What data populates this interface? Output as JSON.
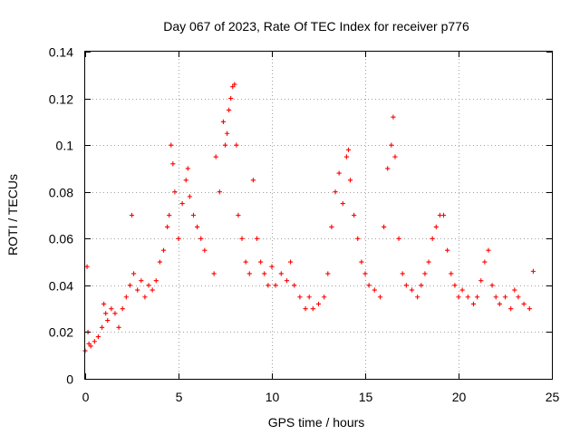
{
  "chart_data": {
    "type": "scatter",
    "title": "Day 067 of 2023, Rate Of TEC Index for receiver p776",
    "xlabel": "GPS time / hours",
    "ylabel": "ROTI / TECUs",
    "xlim": [
      0,
      25
    ],
    "ylim": [
      0,
      0.14
    ],
    "xticks": [
      0,
      5,
      10,
      15,
      20,
      25
    ],
    "xtick_labels": [
      "0",
      "5",
      "10",
      "15",
      "20",
      "25"
    ],
    "yticks": [
      0,
      0.02,
      0.04,
      0.06,
      0.08,
      0.1,
      0.12,
      0.14
    ],
    "ytick_labels": [
      "0",
      "0.02",
      "0.04",
      "0.06",
      "0.08",
      "0.1",
      "0.12",
      "0.14"
    ],
    "grid": true,
    "marker": "plus",
    "color": "#ff0000",
    "data_gaps_hours": [
      [
        6.5,
        6.9
      ]
    ],
    "series": [
      {
        "x": [
          0.0,
          0.1,
          0.15,
          0.2,
          0.3,
          0.5,
          0.7,
          0.9,
          1.0,
          1.1,
          1.2,
          1.4,
          1.6,
          1.8,
          2.0,
          2.2,
          2.4,
          2.5,
          2.6,
          2.8,
          3.0,
          3.2,
          3.4,
          3.6,
          3.8,
          4.0,
          4.2,
          4.4,
          4.5,
          4.6,
          4.7,
          4.8,
          5.0,
          5.2,
          5.4,
          5.5,
          5.6,
          5.8,
          6.0,
          6.2,
          6.4,
          6.9,
          7.0,
          7.2,
          7.4,
          7.5,
          7.6,
          7.7,
          7.8,
          7.9,
          8.0,
          8.1,
          8.2,
          8.4,
          8.6,
          8.8,
          9.0,
          9.2,
          9.4,
          9.6,
          9.8,
          10.0,
          10.2,
          10.5,
          10.8,
          11.0,
          11.2,
          11.5,
          11.8,
          12.0,
          12.2,
          12.5,
          12.8,
          13.0,
          13.2,
          13.4,
          13.6,
          13.8,
          14.0,
          14.1,
          14.2,
          14.4,
          14.6,
          14.8,
          15.0,
          15.2,
          15.5,
          15.8,
          16.0,
          16.2,
          16.4,
          16.5,
          16.6,
          16.8,
          17.0,
          17.2,
          17.5,
          17.8,
          18.0,
          18.2,
          18.4,
          18.6,
          18.8,
          19.0,
          19.2,
          19.4,
          19.6,
          19.8,
          20.0,
          20.2,
          20.5,
          20.8,
          21.0,
          21.2,
          21.4,
          21.6,
          21.8,
          22.0,
          22.2,
          22.5,
          22.8,
          23.0,
          23.2,
          23.5,
          23.8,
          24.0
        ],
        "y": [
          0.012,
          0.048,
          0.02,
          0.015,
          0.014,
          0.016,
          0.018,
          0.022,
          0.032,
          0.028,
          0.025,
          0.03,
          0.028,
          0.022,
          0.03,
          0.035,
          0.04,
          0.07,
          0.045,
          0.038,
          0.042,
          0.035,
          0.04,
          0.038,
          0.042,
          0.05,
          0.055,
          0.065,
          0.07,
          0.1,
          0.092,
          0.08,
          0.06,
          0.075,
          0.085,
          0.09,
          0.078,
          0.07,
          0.065,
          0.06,
          0.055,
          0.045,
          0.095,
          0.08,
          0.11,
          0.1,
          0.105,
          0.115,
          0.12,
          0.125,
          0.126,
          0.1,
          0.07,
          0.06,
          0.05,
          0.045,
          0.085,
          0.06,
          0.05,
          0.045,
          0.04,
          0.048,
          0.04,
          0.045,
          0.042,
          0.05,
          0.04,
          0.035,
          0.03,
          0.035,
          0.03,
          0.032,
          0.035,
          0.045,
          0.065,
          0.08,
          0.088,
          0.075,
          0.095,
          0.098,
          0.085,
          0.07,
          0.06,
          0.05,
          0.045,
          0.04,
          0.038,
          0.035,
          0.065,
          0.09,
          0.1,
          0.112,
          0.095,
          0.06,
          0.045,
          0.04,
          0.038,
          0.035,
          0.04,
          0.045,
          0.05,
          0.06,
          0.065,
          0.07,
          0.07,
          0.055,
          0.045,
          0.04,
          0.035,
          0.038,
          0.035,
          0.032,
          0.035,
          0.042,
          0.05,
          0.055,
          0.04,
          0.035,
          0.032,
          0.035,
          0.03,
          0.038,
          0.035,
          0.032,
          0.03,
          0.046
        ]
      }
    ]
  }
}
